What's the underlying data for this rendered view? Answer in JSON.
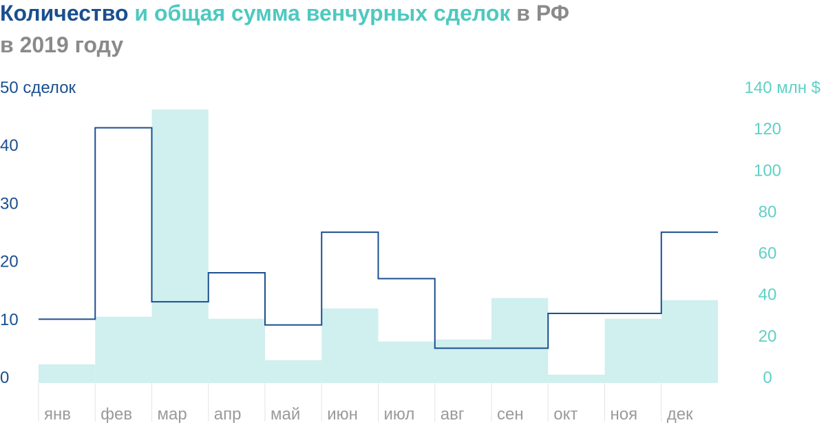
{
  "chart_data": {
    "type": "bar-step",
    "title": [
      "Количество",
      "и общая сумма венчурных сделок",
      "в РФ",
      "в 2019 году"
    ],
    "categories": [
      "янв",
      "фев",
      "мар",
      "апр",
      "май",
      "июн",
      "июл",
      "авг",
      "сен",
      "окт",
      "ноя",
      "дек"
    ],
    "series": [
      {
        "name": "Количество",
        "color": "#1a4f8f",
        "values": [
          11,
          44,
          14,
          19,
          10,
          26,
          18,
          6,
          6,
          12,
          12,
          26
        ]
      },
      {
        "name": "общая сумма",
        "color": "#d0efef",
        "axis": "y2",
        "values": [
          9,
          32,
          132,
          31,
          11,
          36,
          20,
          21,
          41,
          4,
          31,
          40
        ]
      }
    ],
    "ylim": [
      0,
      50
    ],
    "yticks": [
      0,
      10,
      20,
      30,
      40,
      {
        "value": 50,
        "label": "50 сделок"
      }
    ],
    "y2lim": [
      0,
      140
    ],
    "y2ticks": [
      0,
      20,
      40,
      60,
      80,
      100,
      120,
      {
        "value": 140,
        "label": "140 млн $"
      }
    ]
  }
}
